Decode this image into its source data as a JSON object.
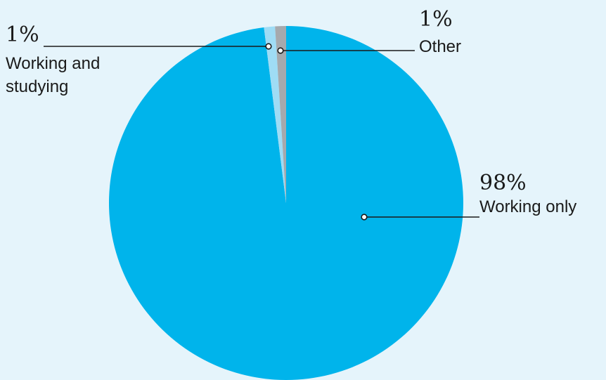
{
  "chart_data": {
    "type": "pie",
    "slices": [
      {
        "name": "Working only",
        "percent_label": "98%",
        "value": 98,
        "color": "#00b4eb"
      },
      {
        "name": "Working and studying",
        "percent_label": "1%",
        "value": 1,
        "color": "#9fdcf5",
        "label_lines": [
          "Working and",
          "studying"
        ]
      },
      {
        "name": "Other",
        "percent_label": "1%",
        "value": 1,
        "color": "#a6a9ad"
      }
    ]
  }
}
